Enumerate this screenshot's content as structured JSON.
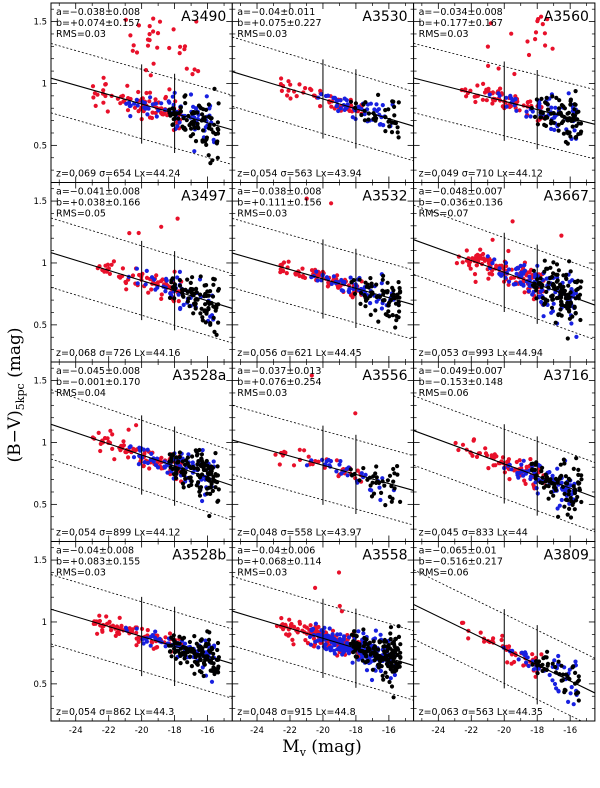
{
  "figure": {
    "ylabel_main": "(B−V)",
    "ylabel_sub": "5kpc",
    "ylabel_unit": " (mag)",
    "xlabel_main": "M",
    "xlabel_sub": "v",
    "xlabel_unit": " (mag)"
  },
  "chart_data": {
    "type": "scatter",
    "grid_layout": "4 rows x 3 columns",
    "xlim": [
      -25.5,
      -14.5
    ],
    "ylim": [
      0.2,
      1.65
    ],
    "xticks": [
      -24,
      -22,
      -20,
      -18,
      -16
    ],
    "xtick_labels": [
      "-24",
      "-22",
      "-20",
      "-18",
      "-16"
    ],
    "yticks": [
      0.5,
      1,
      1.5
    ],
    "ytick_labels": [
      "0.5",
      "1",
      "1.5"
    ],
    "series_colors": {
      "red": "#e8102a",
      "blue": "#1820e0",
      "black": "#000000"
    },
    "vertical_lines_x": [
      -20,
      -18
    ],
    "panels": [
      {
        "name": "A3490",
        "a": "a=−0.038±0.008",
        "b": "b=+0.074±0.157",
        "rms": "RMS=0.03",
        "info": "z=0.069  σ=654  Lx=44.24",
        "slope": -0.038,
        "intercept": 0.074,
        "offset": 0.28,
        "spread": 0.11,
        "n": [
          80,
          70,
          90
        ],
        "outliers": 30
      },
      {
        "name": "A3530",
        "a": "a=−0.04±0.011",
        "b": "b=+0.075±0.227",
        "rms": "RMS=0.03",
        "info": "z=0.054  σ=563  Lx=43.94",
        "slope": -0.04,
        "intercept": 0.075,
        "offset": 0.28,
        "spread": 0.07,
        "n": [
          50,
          50,
          35
        ],
        "outliers": 0
      },
      {
        "name": "A3560",
        "a": "a=−0.034±0.008",
        "b": "b=+0.177±0.167",
        "rms": "RMS=0.03",
        "info": "z=0.049  σ=710  Lx=44.12",
        "slope": -0.034,
        "intercept": 0.177,
        "offset": 0.28,
        "spread": 0.08,
        "n": [
          65,
          60,
          80
        ],
        "outliers": 18
      },
      {
        "name": "A3497",
        "a": "a=−0.041±0.008",
        "b": "b=+0.038±0.166",
        "rms": "RMS=0.05",
        "info": "z=0.068  σ=726  Lx=44.16",
        "slope": -0.041,
        "intercept": 0.038,
        "offset": 0.28,
        "spread": 0.09,
        "n": [
          70,
          45,
          90
        ],
        "outliers": 4
      },
      {
        "name": "A3532",
        "a": "a=−0.038±0.008",
        "b": "b=+0.111±0.156",
        "rms": "RMS=0.03",
        "info": "z=0.056  σ=621  Lx=44.45",
        "slope": -0.038,
        "intercept": 0.111,
        "offset": 0.28,
        "spread": 0.07,
        "n": [
          75,
          55,
          70
        ],
        "outliers": 2
      },
      {
        "name": "A3667",
        "a": "a=−0.048±0.007",
        "b": "b=−0.036±0.136",
        "rms": "RMS=0.07",
        "info": "z=0.053  σ=993  Lx=44.94",
        "slope": -0.048,
        "intercept": -0.036,
        "offset": 0.28,
        "spread": 0.11,
        "n": [
          110,
          110,
          120
        ],
        "outliers": 4
      },
      {
        "name": "A3528a",
        "a": "a=−0.045±0.008",
        "b": "b=−0.001±0.170",
        "rms": "RMS=0.04",
        "info": "z=0.054  σ=899  Lx=44.12",
        "slope": -0.045,
        "intercept": -0.001,
        "offset": 0.28,
        "spread": 0.09,
        "n": [
          90,
          80,
          120
        ],
        "outliers": 2
      },
      {
        "name": "A3556",
        "a": "a=−0.037±0.013",
        "b": "b=+0.076±0.254",
        "rms": "RMS=0.03",
        "info": "z=0.048  σ=558  Lx=43.97",
        "slope": -0.037,
        "intercept": 0.076,
        "offset": 0.28,
        "spread": 0.07,
        "n": [
          35,
          30,
          35
        ],
        "outliers": 2
      },
      {
        "name": "A3716",
        "a": "a=−0.049±0.007",
        "b": "b=−0.153±0.148",
        "rms": "RMS=0.06",
        "info": "z=0.045  σ=833  Lx=44",
        "slope": -0.049,
        "intercept": -0.153,
        "offset": 0.28,
        "spread": 0.09,
        "n": [
          70,
          70,
          80
        ],
        "outliers": 0
      },
      {
        "name": "A3528b",
        "a": "a=−0.04±0.008",
        "b": "b=+0.083±0.155",
        "rms": "RMS=0.03",
        "info": "z=0.054  σ=862  Lx=44.3",
        "slope": -0.04,
        "intercept": 0.083,
        "offset": 0.28,
        "spread": 0.07,
        "n": [
          80,
          70,
          120
        ],
        "outliers": 0
      },
      {
        "name": "A3558",
        "a": "a=−0.04±0.006",
        "b": "b=+0.068±0.114",
        "rms": "RMS=0.03",
        "info": "z=0.048  σ=915  Lx=44.8",
        "slope": -0.04,
        "intercept": 0.068,
        "offset": 0.28,
        "spread": 0.08,
        "n": [
          150,
          200,
          160
        ],
        "outliers": 4
      },
      {
        "name": "A3809",
        "a": "a=−0.065±0.01",
        "b": "b=−0.516±0.217",
        "rms": "RMS=0.06",
        "info": "z=0.063  σ=563  Lx=44.35",
        "slope": -0.065,
        "intercept": -0.516,
        "offset": 0.28,
        "spread": 0.08,
        "n": [
          40,
          45,
          45
        ],
        "outliers": 0
      }
    ]
  }
}
